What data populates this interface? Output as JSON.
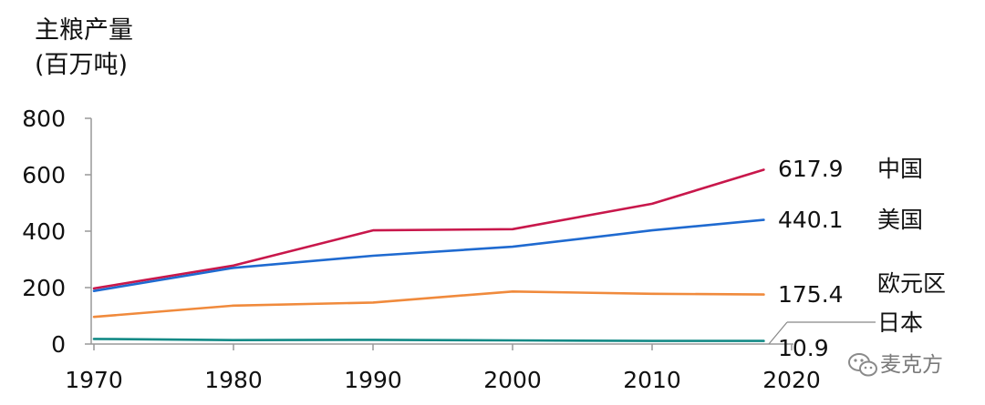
{
  "chart_data": {
    "type": "line",
    "ylabel_line1": "主粮产量",
    "ylabel_line2": "(百万吨)",
    "x": [
      1970,
      1980,
      1990,
      2000,
      2010,
      2018
    ],
    "xticks": [
      "1970",
      "1980",
      "1990",
      "2000",
      "2010",
      "2020"
    ],
    "xlim": [
      1970,
      2020
    ],
    "yticks": [
      "0",
      "200",
      "400",
      "600",
      "800"
    ],
    "ylim": [
      0,
      800
    ],
    "grid": false,
    "series": [
      {
        "name": "中国",
        "color": "#c8174b",
        "values": [
          197,
          278,
          403,
          407,
          497,
          617.9
        ],
        "end_label": "617.9"
      },
      {
        "name": "美国",
        "color": "#1f6ad0",
        "values": [
          188,
          270,
          313,
          345,
          403,
          440.1
        ],
        "end_label": "440.1"
      },
      {
        "name": "欧元区",
        "color": "#f08a3c",
        "values": [
          96,
          136,
          147,
          186,
          178,
          175.4
        ],
        "end_label": "175.4"
      },
      {
        "name": "日本",
        "color": "#138a86",
        "values": [
          18,
          14,
          15,
          13,
          11,
          10.9
        ],
        "end_label": "10.9"
      }
    ]
  },
  "watermark": {
    "text": "麦克方",
    "icon": "wechat-icon"
  }
}
